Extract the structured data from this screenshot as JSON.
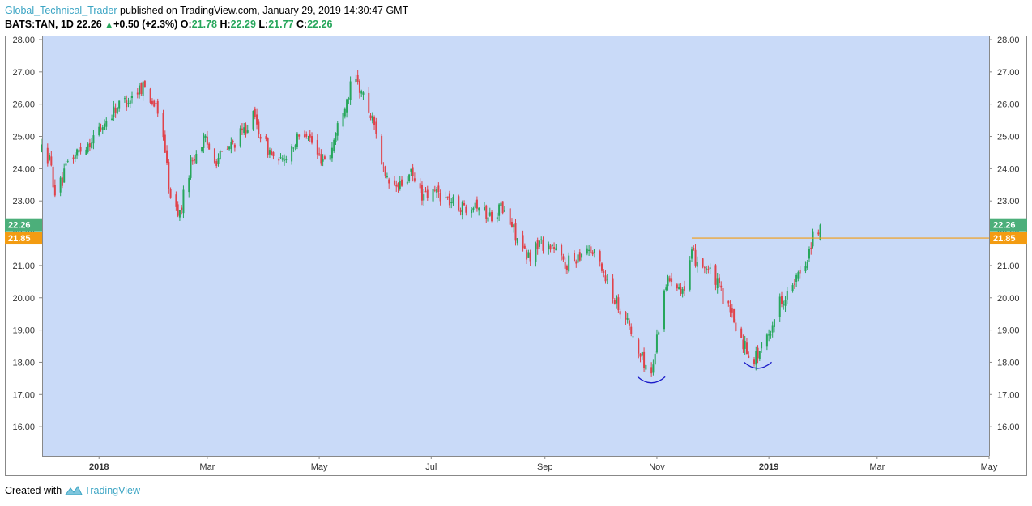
{
  "header": {
    "author": "Global_Technical_Trader",
    "published": " published on TradingView.com, January 29, 2019 14:30:47 GMT"
  },
  "symbol_line": {
    "symbol": "BATS:TAN, 1D",
    "last": "22.26",
    "arrow": "▲",
    "change": "+0.50 (+2.3%)",
    "o_label": "O:",
    "o_value": "21.78",
    "h_label": "H:",
    "h_value": "22.29",
    "l_label": "L:",
    "l_value": "21.77",
    "c_label": "C:",
    "c_value": "22.26"
  },
  "footer": {
    "created_with": "Created with",
    "brand": "TradingView"
  },
  "colors": {
    "plot_background": "#c9daf8",
    "up_candle": "#26a65b",
    "down_candle": "#e0424a",
    "resistance_line": "#f39c12",
    "price_badge_up": "#4caf7a",
    "price_badge_line": "#f39c12",
    "arc": "#1a1ac8"
  },
  "chart_data": {
    "type": "candlestick",
    "y_ticks": [
      "16.00",
      "17.00",
      "18.00",
      "19.00",
      "20.00",
      "21.00",
      "22.00",
      "23.00",
      "24.00",
      "25.00",
      "26.00",
      "27.00",
      "28.00"
    ],
    "ylim": [
      15.1,
      28.1
    ],
    "x_ticks": [
      "2018",
      "Mar",
      "May",
      "Jul",
      "Sep",
      "Nov",
      "2019",
      "Mar",
      "May"
    ],
    "x_tick_dates": [
      "2018-01-01",
      "2018-03-01",
      "2018-05-01",
      "2018-07-01",
      "2018-09-01",
      "2018-11-01",
      "2019-01-01",
      "2019-03-01",
      "2019-05-01"
    ],
    "x_start": "2017-12-01",
    "x_end": "2019-05-01",
    "last_price_label": "22.26",
    "last_price": 22.26,
    "resistance_label": "21.85",
    "resistance": {
      "price": 21.85,
      "from": "2018-11-20",
      "to": "2019-05-01"
    },
    "annotations": [
      {
        "type": "cup-arc",
        "date": "2018-10-29",
        "price": 17.4
      },
      {
        "type": "cup-arc",
        "date": "2018-12-26",
        "price": 17.85
      }
    ],
    "series": [
      {
        "path_points": [
          [
            "2017-12-01",
            24.6
          ],
          [
            "2017-12-05",
            24.3
          ],
          [
            "2017-12-08",
            23.3
          ],
          [
            "2017-12-12",
            23.6
          ],
          [
            "2017-12-15",
            24.2
          ],
          [
            "2017-12-20",
            24.5
          ],
          [
            "2017-12-28",
            24.9
          ],
          [
            "2018-01-05",
            25.5
          ],
          [
            "2018-01-10",
            25.9
          ],
          [
            "2018-01-18",
            26.2
          ],
          [
            "2018-01-25",
            26.6
          ],
          [
            "2018-01-31",
            26.0
          ],
          [
            "2018-02-05",
            25.1
          ],
          [
            "2018-02-09",
            23.0
          ],
          [
            "2018-02-14",
            22.6
          ],
          [
            "2018-02-20",
            24.2
          ],
          [
            "2018-02-27",
            24.9
          ],
          [
            "2018-03-06",
            24.3
          ],
          [
            "2018-03-12",
            24.6
          ],
          [
            "2018-03-20",
            25.1
          ],
          [
            "2018-03-26",
            25.6
          ],
          [
            "2018-04-02",
            24.7
          ],
          [
            "2018-04-09",
            24.1
          ],
          [
            "2018-04-16",
            24.7
          ],
          [
            "2018-04-24",
            25.2
          ],
          [
            "2018-04-30",
            24.4
          ],
          [
            "2018-05-06",
            24.3
          ],
          [
            "2018-05-14",
            25.9
          ],
          [
            "2018-05-20",
            26.8
          ],
          [
            "2018-05-24",
            26.4
          ],
          [
            "2018-06-01",
            25.2
          ],
          [
            "2018-06-06",
            23.6
          ],
          [
            "2018-06-13",
            23.4
          ],
          [
            "2018-06-20",
            23.8
          ],
          [
            "2018-06-27",
            23.1
          ],
          [
            "2018-07-04",
            23.3
          ],
          [
            "2018-07-11",
            23.0
          ],
          [
            "2018-07-18",
            22.8
          ],
          [
            "2018-07-25",
            23.0
          ],
          [
            "2018-08-01",
            22.5
          ],
          [
            "2018-08-08",
            22.8
          ],
          [
            "2018-08-15",
            22.1
          ],
          [
            "2018-08-22",
            21.2
          ],
          [
            "2018-08-29",
            21.7
          ],
          [
            "2018-09-05",
            21.6
          ],
          [
            "2018-09-12",
            21.0
          ],
          [
            "2018-09-19",
            21.3
          ],
          [
            "2018-09-24",
            21.6
          ],
          [
            "2018-10-01",
            21.1
          ],
          [
            "2018-10-08",
            20.1
          ],
          [
            "2018-10-15",
            19.4
          ],
          [
            "2018-10-22",
            18.3
          ],
          [
            "2018-10-29",
            17.6
          ],
          [
            "2018-11-05",
            20.3
          ],
          [
            "2018-11-09",
            20.7
          ],
          [
            "2018-11-16",
            20.2
          ],
          [
            "2018-11-20",
            21.3
          ],
          [
            "2018-11-27",
            21.0
          ],
          [
            "2018-12-04",
            20.4
          ],
          [
            "2018-12-11",
            19.5
          ],
          [
            "2018-12-18",
            18.6
          ],
          [
            "2018-12-24",
            18.1
          ],
          [
            "2018-12-31",
            18.7
          ],
          [
            "2019-01-07",
            19.9
          ],
          [
            "2019-01-14",
            20.3
          ],
          [
            "2019-01-21",
            21.1
          ],
          [
            "2019-01-25",
            21.9
          ],
          [
            "2019-01-29",
            22.26
          ]
        ]
      }
    ]
  }
}
